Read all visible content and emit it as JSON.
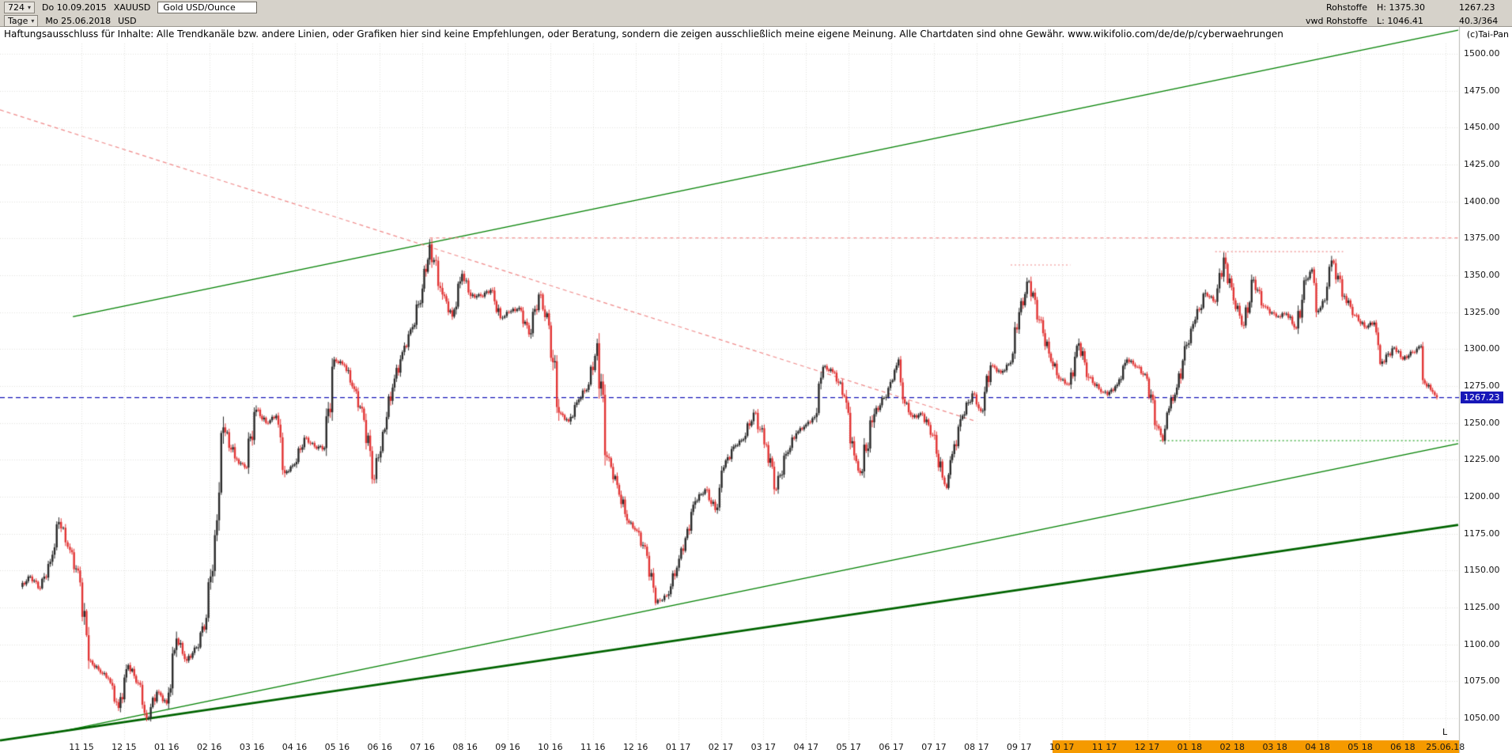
{
  "header": {
    "bar_count": "724",
    "start_date": "Do 10.09.2015",
    "symbol": "XAUUSD",
    "instrument": "Gold USD/Ounce",
    "period": "Tage",
    "end_date": "Mo 25.06.2018",
    "currency": "USD",
    "right": {
      "category": "Rohstoffe",
      "high": "H: 1375.30",
      "provider": "vwd Rohstoffe",
      "low": "L: 1046.41",
      "last_price": "1267.23",
      "ratio": "40.3/364",
      "copyright": "(c)Tai-Pan"
    }
  },
  "disclaimer": {
    "text": "Haftungsausschluss für Inhalte: Alle Trendkanäle bzw. andere Linien, oder Grafiken hier sind keine Empfehlungen, oder Beratung, sondern die zeigen ausschließlich meine eigene Meinung. Alle Chartdaten sind ohne Gewähr. ",
    "url": "www.wikifolio.com/de/de/p/cyberwaehrungen"
  },
  "chart_data": {
    "type": "candlestick",
    "title": "XAUUSD Gold USD/Ounce, Tageschart 10.09.2015 - 25.06.2018",
    "high": 1375.3,
    "low": 1046.41,
    "last": 1267.23,
    "grid": true,
    "y_axis_side": "right",
    "up_color": "#2a2a2a",
    "down_color": "#e23434",
    "y_ticks": [
      1500,
      1475,
      1450,
      1425,
      1400,
      1375,
      1350,
      1325,
      1300,
      1275,
      1250,
      1225,
      1200,
      1175,
      1150,
      1125,
      1100,
      1075,
      1050
    ],
    "x_labels": [
      "11 15",
      "12 15",
      "01 16",
      "02 16",
      "03 16",
      "04 16",
      "05 16",
      "06 16",
      "07 16",
      "08 16",
      "09 16",
      "10 16",
      "11 16",
      "12 16",
      "01 17",
      "02 17",
      "03 17",
      "04 17",
      "05 17",
      "06 17",
      "07 17",
      "08 17",
      "09 17",
      "10 17",
      "11 17",
      "12 17",
      "01 18",
      "02 18",
      "03 18",
      "04 18",
      "05 18",
      "06 18",
      "25.06.18"
    ],
    "x_highlight_start_index": 23,
    "x_highlight_color": "#f59a00",
    "last_price_line": {
      "value": 1267.23,
      "label": "1267.23",
      "color": "#1717b8"
    },
    "l_marker": {
      "text": "L"
    },
    "trendlines": [
      {
        "name": "upper-channel-line",
        "color": "#008000",
        "width": 1.4,
        "dash": [],
        "points": [
          [
            -0.2,
            1322
          ],
          [
            32.3,
            1516
          ]
        ]
      },
      {
        "name": "lower-support-line",
        "color": "#008000",
        "width": 1.4,
        "dash": [],
        "points": [
          [
            -0.67,
            1040
          ],
          [
            32.3,
            1236
          ]
        ]
      },
      {
        "name": "major-support-line",
        "color": "#006400",
        "width": 2.8,
        "dash": [],
        "points": [
          [
            -1.91,
            1035
          ],
          [
            32.3,
            1181
          ]
        ]
      },
      {
        "name": "descending-resistance-line",
        "color": "#f08a8a",
        "width": 1.2,
        "dash": [
          5,
          4
        ],
        "points": [
          [
            -1.91,
            1462
          ],
          [
            21.0,
            1251
          ]
        ]
      },
      {
        "name": "high-1375-horizontal-line",
        "color": "#f08a8a",
        "width": 1.2,
        "dash": [
          4,
          4
        ],
        "points": [
          [
            8.17,
            1375.3
          ],
          [
            32.3,
            1375.3
          ]
        ]
      },
      {
        "name": "sep17-high-horizontal-line",
        "color": "#f08a8a",
        "width": 1.2,
        "dash": [
          2,
          3
        ],
        "points": [
          [
            21.8,
            1357
          ],
          [
            23.2,
            1357
          ]
        ]
      },
      {
        "name": "jan18-high-horizontal-line",
        "color": "#f08a8a",
        "width": 1.2,
        "dash": [
          2,
          3
        ],
        "points": [
          [
            26.6,
            1366
          ],
          [
            29.6,
            1366
          ]
        ]
      },
      {
        "name": "dec17-low-support-line",
        "color": "#27a427",
        "width": 1.2,
        "dash": [
          2,
          3
        ],
        "points": [
          [
            25.3,
            1238
          ],
          [
            32.3,
            1238
          ]
        ]
      }
    ],
    "series_weekly": {
      "name": "XAUUSD weekly closes (t = months since 2015-11-01)",
      "points": [
        [
          -1.43,
          1139
        ],
        [
          -1.2,
          1146
        ],
        [
          -0.97,
          1138
        ],
        [
          -0.73,
          1156
        ],
        [
          -0.53,
          1183
        ],
        [
          -0.27,
          1164
        ],
        [
          -0.03,
          1142
        ],
        [
          0.17,
          1089
        ],
        [
          0.4,
          1083
        ],
        [
          0.63,
          1077
        ],
        [
          0.87,
          1057
        ],
        [
          1.1,
          1086
        ],
        [
          1.33,
          1074
        ],
        [
          1.53,
          1050
        ],
        [
          1.77,
          1068
        ],
        [
          2.0,
          1060
        ],
        [
          2.23,
          1104
        ],
        [
          2.47,
          1089
        ],
        [
          2.7,
          1098
        ],
        [
          2.93,
          1118
        ],
        [
          3.13,
          1174
        ],
        [
          3.33,
          1247
        ],
        [
          3.6,
          1226
        ],
        [
          3.83,
          1220
        ],
        [
          4.1,
          1259
        ],
        [
          4.33,
          1250
        ],
        [
          4.57,
          1255
        ],
        [
          4.77,
          1216
        ],
        [
          5.0,
          1222
        ],
        [
          5.23,
          1240
        ],
        [
          5.47,
          1234
        ],
        [
          5.7,
          1233
        ],
        [
          5.93,
          1293
        ],
        [
          6.17,
          1289
        ],
        [
          6.4,
          1273
        ],
        [
          6.63,
          1252
        ],
        [
          6.87,
          1212
        ],
        [
          7.07,
          1244
        ],
        [
          7.3,
          1274
        ],
        [
          7.53,
          1298
        ],
        [
          7.77,
          1315
        ],
        [
          8.0,
          1341
        ],
        [
          8.17,
          1371
        ],
        [
          8.47,
          1337
        ],
        [
          8.7,
          1322
        ],
        [
          8.93,
          1351
        ],
        [
          9.13,
          1336
        ],
        [
          9.37,
          1336
        ],
        [
          9.6,
          1340
        ],
        [
          9.83,
          1321
        ],
        [
          10.03,
          1325
        ],
        [
          10.27,
          1328
        ],
        [
          10.5,
          1310
        ],
        [
          10.73,
          1337
        ],
        [
          10.97,
          1316
        ],
        [
          11.2,
          1257
        ],
        [
          11.43,
          1251
        ],
        [
          11.67,
          1266
        ],
        [
          11.9,
          1276
        ],
        [
          12.1,
          1304
        ],
        [
          12.33,
          1227
        ],
        [
          12.57,
          1208
        ],
        [
          12.8,
          1184
        ],
        [
          13.03,
          1177
        ],
        [
          13.27,
          1160
        ],
        [
          13.47,
          1128
        ],
        [
          13.73,
          1133
        ],
        [
          13.97,
          1152
        ],
        [
          14.17,
          1172
        ],
        [
          14.4,
          1197
        ],
        [
          14.63,
          1205
        ],
        [
          14.87,
          1191
        ],
        [
          15.07,
          1220
        ],
        [
          15.3,
          1234
        ],
        [
          15.53,
          1239
        ],
        [
          15.77,
          1257
        ],
        [
          16.07,
          1235
        ],
        [
          16.3,
          1205
        ],
        [
          16.53,
          1229
        ],
        [
          16.77,
          1243
        ],
        [
          17.0,
          1249
        ],
        [
          17.2,
          1254
        ],
        [
          17.4,
          1288
        ],
        [
          17.67,
          1284
        ],
        [
          17.9,
          1268
        ],
        [
          18.13,
          1228
        ],
        [
          18.27,
          1216
        ],
        [
          18.6,
          1256
        ],
        [
          18.83,
          1267
        ],
        [
          19.03,
          1279
        ],
        [
          19.17,
          1293
        ],
        [
          19.27,
          1266
        ],
        [
          19.5,
          1254
        ],
        [
          19.73,
          1256
        ],
        [
          19.97,
          1242
        ],
        [
          20.2,
          1213
        ],
        [
          20.3,
          1206
        ],
        [
          20.43,
          1229
        ],
        [
          20.67,
          1255
        ],
        [
          20.9,
          1270
        ],
        [
          21.1,
          1258
        ],
        [
          21.33,
          1289
        ],
        [
          21.57,
          1284
        ],
        [
          21.8,
          1291
        ],
        [
          22.0,
          1325
        ],
        [
          22.23,
          1346
        ],
        [
          22.47,
          1320
        ],
        [
          22.7,
          1297
        ],
        [
          22.93,
          1280
        ],
        [
          23.17,
          1276
        ],
        [
          23.4,
          1304
        ],
        [
          23.63,
          1281
        ],
        [
          23.87,
          1273
        ],
        [
          24.07,
          1269
        ],
        [
          24.3,
          1276
        ],
        [
          24.53,
          1293
        ],
        [
          24.77,
          1288
        ],
        [
          25.0,
          1280
        ],
        [
          25.23,
          1248
        ],
        [
          25.37,
          1238
        ],
        [
          25.47,
          1257
        ],
        [
          25.7,
          1274
        ],
        [
          25.93,
          1303
        ],
        [
          26.13,
          1320
        ],
        [
          26.37,
          1338
        ],
        [
          26.6,
          1332
        ],
        [
          26.8,
          1362
        ],
        [
          27.03,
          1333
        ],
        [
          27.27,
          1316
        ],
        [
          27.5,
          1347
        ],
        [
          27.73,
          1329
        ],
        [
          28.03,
          1322
        ],
        [
          28.27,
          1324
        ],
        [
          28.5,
          1314
        ],
        [
          28.73,
          1347
        ],
        [
          28.87,
          1354
        ],
        [
          28.97,
          1325
        ],
        [
          29.17,
          1333
        ],
        [
          29.33,
          1360
        ],
        [
          29.63,
          1336
        ],
        [
          29.87,
          1323
        ],
        [
          30.1,
          1315
        ],
        [
          30.33,
          1318
        ],
        [
          30.47,
          1290
        ],
        [
          30.8,
          1301
        ],
        [
          31.0,
          1293
        ],
        [
          31.23,
          1298
        ],
        [
          31.43,
          1302
        ],
        [
          31.47,
          1279
        ],
        [
          31.7,
          1271
        ],
        [
          31.8,
          1267.23
        ]
      ]
    }
  }
}
